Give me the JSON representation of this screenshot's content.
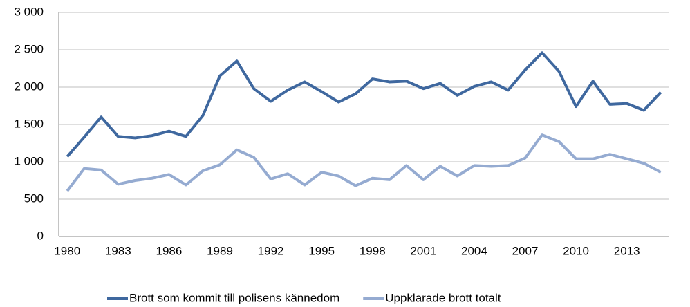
{
  "chart_data": {
    "type": "line",
    "categories": [
      "1980",
      null,
      null,
      "1983",
      null,
      null,
      "1986",
      null,
      null,
      "1989",
      null,
      null,
      "1992",
      null,
      null,
      "1995",
      null,
      null,
      "1998",
      null,
      null,
      "2001",
      null,
      null,
      "2004",
      null,
      null,
      "2007",
      null,
      null,
      "2010",
      null,
      null,
      "2013",
      null,
      null
    ],
    "series": [
      {
        "name": "Brott som kommit till polisens kännedom",
        "color": "#3f689f",
        "values": [
          1070,
          1330,
          1600,
          1340,
          1320,
          1350,
          1410,
          1340,
          1620,
          2150,
          2350,
          1980,
          1810,
          1960,
          2070,
          1940,
          1800,
          1910,
          2110,
          2070,
          2080,
          1980,
          2050,
          1890,
          2010,
          2070,
          1960,
          2230,
          2460,
          2210,
          1740,
          2080,
          1770,
          1780,
          1690,
          1930
        ]
      },
      {
        "name": "Uppklarade brott totalt",
        "color": "#95abd1",
        "values": [
          610,
          910,
          890,
          700,
          750,
          780,
          830,
          690,
          880,
          960,
          1160,
          1060,
          770,
          840,
          690,
          860,
          810,
          680,
          780,
          760,
          950,
          760,
          940,
          810,
          950,
          940,
          950,
          1050,
          1360,
          1270,
          1040,
          1040,
          1100,
          1040,
          980,
          860
        ]
      }
    ],
    "ylim": [
      0,
      3000
    ],
    "yticks": [
      0,
      500,
      {
        "value": 1000,
        "label": "1 000"
      },
      {
        "value": 1500,
        "label": "1 500"
      },
      {
        "value": 2000,
        "label": "2 000"
      },
      {
        "value": 2500,
        "label": "2 500"
      },
      {
        "value": 3000,
        "label": "3 000"
      }
    ],
    "grid": true,
    "legend": "bottom"
  }
}
